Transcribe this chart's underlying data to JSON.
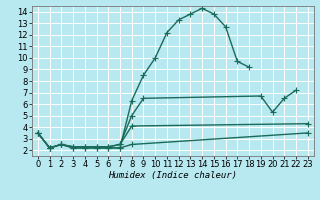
{
  "xlabel": "Humidex (Indice chaleur)",
  "bg_color": "#b8e8f0",
  "line_color": "#1a6b5a",
  "grid_color": "#ffffff",
  "xlim": [
    -0.5,
    23.5
  ],
  "ylim": [
    1.5,
    14.5
  ],
  "xticks": [
    0,
    1,
    2,
    3,
    4,
    5,
    6,
    7,
    8,
    9,
    10,
    11,
    12,
    13,
    14,
    15,
    16,
    17,
    18,
    19,
    20,
    21,
    22,
    23
  ],
  "yticks": [
    2,
    3,
    4,
    5,
    6,
    7,
    8,
    9,
    10,
    11,
    12,
    13,
    14
  ],
  "lines": [
    {
      "x": [
        0,
        1,
        2,
        3,
        4,
        5,
        6,
        7,
        8,
        9,
        10,
        11,
        12,
        13,
        14,
        15,
        16,
        17,
        18
      ],
      "y": [
        3.5,
        2.2,
        2.5,
        2.2,
        2.2,
        2.2,
        2.2,
        2.2,
        6.3,
        8.5,
        10.0,
        12.2,
        13.3,
        13.8,
        14.3,
        13.8,
        12.7,
        9.7,
        9.2
      ]
    },
    {
      "x": [
        0,
        1,
        2,
        3,
        4,
        5,
        6,
        7,
        8,
        9,
        19,
        20,
        21,
        22
      ],
      "y": [
        3.5,
        2.2,
        2.5,
        2.3,
        2.3,
        2.3,
        2.3,
        2.5,
        5.0,
        6.5,
        6.7,
        5.3,
        6.5,
        7.2
      ]
    },
    {
      "x": [
        0,
        1,
        2,
        3,
        4,
        5,
        6,
        7,
        8,
        23
      ],
      "y": [
        3.5,
        2.2,
        2.5,
        2.3,
        2.3,
        2.3,
        2.3,
        2.5,
        4.1,
        4.3
      ]
    },
    {
      "x": [
        0,
        1,
        2,
        3,
        4,
        5,
        6,
        7,
        8,
        23
      ],
      "y": [
        3.5,
        2.2,
        2.5,
        2.2,
        2.2,
        2.2,
        2.2,
        2.2,
        2.5,
        3.5
      ]
    }
  ],
  "marker": "+",
  "markersize": 4,
  "linewidth": 1.0,
  "tick_labelsize": 6,
  "xlabel_fontsize": 6.5
}
